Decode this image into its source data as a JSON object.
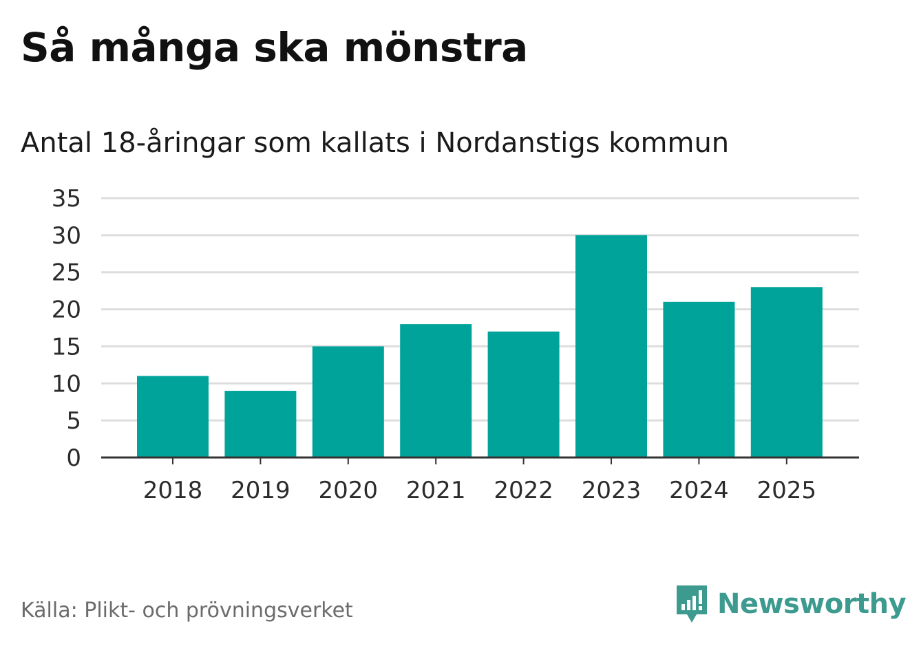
{
  "title": "Så många ska mönstra",
  "subtitle": "Antal 18-åringar som kallats i Nordanstigs kommun",
  "source": "Källa: Plikt- och prövningsverket",
  "brand": {
    "name": "Newsworthy",
    "icon": "newsworthy-logo-icon"
  },
  "colors": {
    "bar": "#00a39a",
    "grid": "#dddddd",
    "axis": "#333333",
    "brand": "#3d9a8f"
  },
  "chart_data": {
    "type": "bar",
    "title": "Så många ska mönstra",
    "subtitle": "Antal 18-åringar som kallats i Nordanstigs kommun",
    "xlabel": "",
    "ylabel": "",
    "categories": [
      "2018",
      "2019",
      "2020",
      "2021",
      "2022",
      "2023",
      "2024",
      "2025"
    ],
    "values": [
      11,
      9,
      15,
      18,
      17,
      30,
      21,
      23
    ],
    "ylim": [
      0,
      35
    ],
    "yticks": [
      0,
      5,
      10,
      15,
      20,
      25,
      30,
      35
    ],
    "ytick_labels": [
      "0",
      "5",
      "10",
      "15",
      "20",
      "25",
      "30",
      "35"
    ],
    "grid": true,
    "legend": "none"
  }
}
